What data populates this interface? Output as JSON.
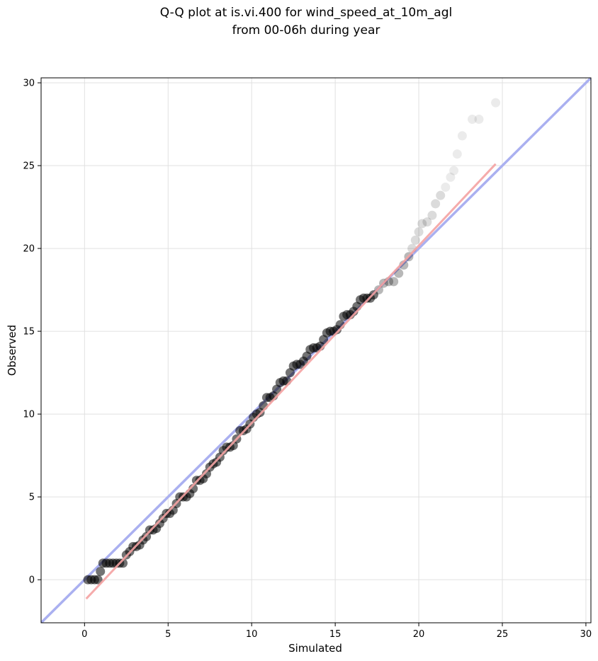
{
  "chart_data": {
    "type": "scatter",
    "title_lines": [
      "Q-Q plot at is.vi.400 for wind_speed_at_10m_agl",
      "from 00-06h during year"
    ],
    "xlabel": "Simulated",
    "ylabel": "Observed",
    "xlim": [
      -2.6,
      30.3
    ],
    "ylim": [
      -2.6,
      30.3
    ],
    "xticks": [
      0,
      5,
      10,
      15,
      20,
      25,
      30
    ],
    "yticks": [
      0,
      5,
      10,
      15,
      20,
      25,
      30
    ],
    "xtick_labels": [
      "0",
      "5",
      "10",
      "15",
      "20",
      "25",
      "30"
    ],
    "ytick_labels": [
      "0",
      "5",
      "10",
      "15",
      "20",
      "25",
      "30"
    ],
    "grid": true,
    "colors": {
      "points": "#000000",
      "identity_line": "#aab0f0",
      "fit_line": "#f4a3a3",
      "fit_line_dark": "#8b0000",
      "grid": "#e0e0e0"
    },
    "identity_line": {
      "x": [
        -2.6,
        30.3
      ],
      "y": [
        -2.6,
        30.3
      ]
    },
    "fit_line": {
      "x": [
        0.1,
        24.6
      ],
      "y": [
        -1.15,
        25.1
      ]
    },
    "series": [
      {
        "x": [
          0.2,
          0.4,
          0.6,
          0.8,
          0.95,
          1.1,
          1.3,
          1.5,
          1.7,
          1.9,
          2.1,
          2.3,
          2.5,
          2.7,
          2.9,
          3.1,
          3.3,
          3.5,
          3.7,
          3.9,
          4.1,
          4.3,
          4.5,
          4.7,
          4.9,
          5.1,
          5.3,
          5.5,
          5.7,
          5.9,
          6.1,
          6.3,
          6.5,
          6.7,
          6.9,
          7.1,
          7.3,
          7.5,
          7.7,
          7.9,
          8.1,
          8.3,
          8.5,
          8.7,
          8.9,
          9.1,
          9.3,
          9.5,
          9.7,
          9.9,
          10.1,
          10.3,
          10.5,
          10.7,
          10.9,
          11.1,
          11.3,
          11.5,
          11.7,
          11.9,
          12.1,
          12.3,
          12.5,
          12.7,
          12.9,
          13.1,
          13.3,
          13.5,
          13.7,
          13.9,
          14.1,
          14.3,
          14.5,
          14.7,
          14.9,
          15.1,
          15.3,
          15.5,
          15.7,
          15.9,
          16.1,
          16.3,
          16.5,
          16.7,
          16.9,
          17.1,
          17.3,
          17.6,
          17.9,
          18.2,
          18.5,
          18.8,
          19.1,
          19.4,
          19.6,
          19.8,
          20.0,
          20.2,
          20.5,
          20.8,
          21.0,
          21.3,
          21.6,
          21.9,
          22.1,
          22.3,
          22.6,
          23.2,
          23.6,
          24.6
        ],
        "y": [
          0,
          0,
          0,
          0,
          0.5,
          1,
          1,
          1,
          1,
          1,
          1,
          1,
          1.5,
          1.7,
          2,
          2,
          2.1,
          2.4,
          2.6,
          3,
          3,
          3.1,
          3.4,
          3.7,
          4,
          4,
          4.2,
          4.6,
          5,
          5,
          5,
          5.2,
          5.5,
          6,
          6,
          6.1,
          6.4,
          6.8,
          7,
          7.1,
          7.4,
          7.8,
          8,
          8,
          8.1,
          8.5,
          9,
          9,
          9.1,
          9.4,
          9.8,
          10,
          10.1,
          10.5,
          11,
          11,
          11.1,
          11.5,
          11.9,
          12,
          12,
          12.5,
          12.9,
          13,
          13,
          13.2,
          13.5,
          13.9,
          14,
          14,
          14.1,
          14.5,
          14.9,
          15,
          15,
          15.1,
          15.4,
          15.9,
          16,
          16,
          16.2,
          16.5,
          16.9,
          17,
          17,
          17,
          17.2,
          17.5,
          17.9,
          18,
          18,
          18.5,
          19,
          19.5,
          20,
          20.5,
          21,
          21.5,
          21.6,
          22,
          22.7,
          23.2,
          23.7,
          24.3,
          24.7,
          25.7,
          26.8,
          27.8,
          27.8,
          28.8
        ]
      }
    ]
  }
}
